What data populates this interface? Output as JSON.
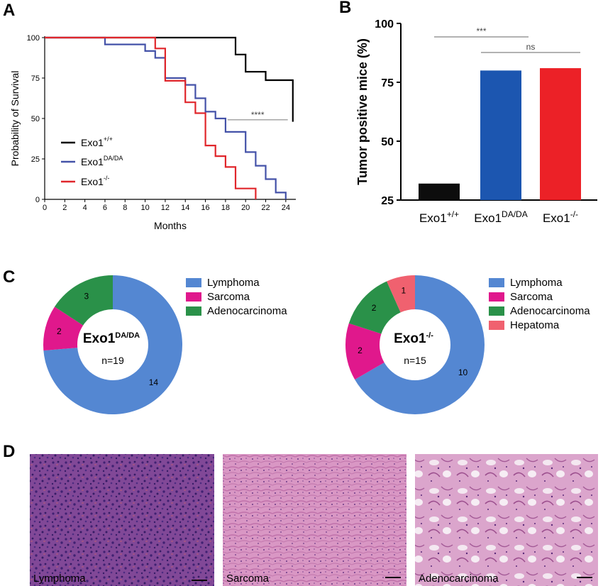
{
  "panels": {
    "a": "A",
    "b": "B",
    "c": "C",
    "d": "D"
  },
  "chart_data": [
    {
      "type": "line",
      "panel": "A",
      "xlabel": "Months",
      "ylabel": "Probability of Survival",
      "xlim": [
        0,
        25
      ],
      "ylim": [
        0,
        100
      ],
      "xticks": [
        0,
        2,
        4,
        6,
        8,
        10,
        12,
        14,
        16,
        18,
        20,
        22,
        24
      ],
      "yticks": [
        0,
        25,
        50,
        75,
        100
      ],
      "legend_position": "middle-left",
      "series": [
        {
          "name": "Exo1",
          "sup": "+/+",
          "color": "#000000",
          "steps": [
            [
              0,
              100
            ],
            [
              19,
              100
            ],
            [
              19,
              89.5
            ],
            [
              20,
              89.5
            ],
            [
              20,
              78.9
            ],
            [
              22,
              78.9
            ],
            [
              22,
              73.7
            ],
            [
              24.7,
              73.7
            ],
            [
              24.7,
              48
            ]
          ]
        },
        {
          "name": "Exo1",
          "sup": "DA/DA",
          "color": "#4452a8",
          "steps": [
            [
              0,
              100
            ],
            [
              6,
              100
            ],
            [
              6,
              95.8
            ],
            [
              10,
              95.8
            ],
            [
              10,
              91.7
            ],
            [
              11,
              91.7
            ],
            [
              11,
              87.5
            ],
            [
              12,
              87.5
            ],
            [
              12,
              75
            ],
            [
              14,
              75
            ],
            [
              14,
              70.8
            ],
            [
              15,
              70.8
            ],
            [
              15,
              62.5
            ],
            [
              16,
              62.5
            ],
            [
              16,
              54.2
            ],
            [
              17,
              54.2
            ],
            [
              17,
              50
            ],
            [
              18,
              50
            ],
            [
              18,
              41.7
            ],
            [
              20,
              41.7
            ],
            [
              20,
              29.2
            ],
            [
              21,
              29.2
            ],
            [
              21,
              20.8
            ],
            [
              22,
              20.8
            ],
            [
              22,
              12.5
            ],
            [
              23,
              12.5
            ],
            [
              23,
              4.2
            ],
            [
              24,
              4.2
            ],
            [
              24,
              0
            ]
          ]
        },
        {
          "name": "Exo1",
          "sup": "-/-",
          "color": "#e0262b",
          "steps": [
            [
              0,
              100
            ],
            [
              11,
              100
            ],
            [
              11,
              93.3
            ],
            [
              12,
              93.3
            ],
            [
              12,
              73.3
            ],
            [
              14,
              73.3
            ],
            [
              14,
              60
            ],
            [
              15,
              60
            ],
            [
              15,
              53.3
            ],
            [
              16,
              53.3
            ],
            [
              16,
              33.3
            ],
            [
              17,
              33.3
            ],
            [
              17,
              26.7
            ],
            [
              18,
              26.7
            ],
            [
              18,
              20
            ],
            [
              19,
              20
            ],
            [
              19,
              6.7
            ],
            [
              21,
              6.7
            ],
            [
              21,
              0
            ]
          ]
        }
      ],
      "annotation": {
        "text": "****",
        "x": [
          18.2,
          24.2
        ],
        "y": 54
      }
    },
    {
      "type": "bar",
      "panel": "B",
      "ylabel": "Tumor positive mice (%)",
      "ylim": [
        25,
        100
      ],
      "yticks": [
        25,
        50,
        75,
        100
      ],
      "categories": [
        {
          "base": "Exo1",
          "sup": "+/+"
        },
        {
          "base": "Exo1",
          "sup": "DA/DA"
        },
        {
          "base": "Exo1",
          "sup": "-/-"
        }
      ],
      "values": [
        32,
        80,
        81
      ],
      "colors": [
        "#0d0d0d",
        "#1c56b0",
        "#ec2127"
      ],
      "significance": [
        {
          "text": "***",
          "from": 0,
          "to": 1
        },
        {
          "text": "ns",
          "from": 1,
          "to": 2
        }
      ]
    },
    {
      "type": "pie",
      "panel": "C",
      "center_label": "Exo1",
      "center_sup": "DA/DA",
      "n_label": "n=19",
      "slices": [
        {
          "label": "Lymphoma",
          "value": 14,
          "color": "#5487d2"
        },
        {
          "label": "Sarcoma",
          "value": 2,
          "color": "#e0188c"
        },
        {
          "label": "Adenocarcinoma",
          "value": 3,
          "color": "#2a9149"
        }
      ],
      "legend": [
        "Lymphoma",
        "Sarcoma",
        "Adenocarcinoma"
      ]
    },
    {
      "type": "pie",
      "panel": "C",
      "center_label": "Exo1",
      "center_sup": "-/-",
      "n_label": "n=15",
      "slices": [
        {
          "label": "Lymphoma",
          "value": 10,
          "color": "#5487d2"
        },
        {
          "label": "Sarcoma",
          "value": 2,
          "color": "#e0188c"
        },
        {
          "label": "Adenocarcinoma",
          "value": 2,
          "color": "#2a9149"
        },
        {
          "label": "Hepatoma",
          "value": 1,
          "color": "#f0616f"
        }
      ],
      "legend": [
        "Lymphoma",
        "Sarcoma",
        "Adenocarcinoma",
        "Hepatoma"
      ]
    }
  ],
  "histology": [
    {
      "label": "Lymphoma",
      "style": "lymphoma"
    },
    {
      "label": "Sarcoma",
      "style": "sarcoma"
    },
    {
      "label": "Adenocarcinoma",
      "style": "adeno"
    }
  ]
}
